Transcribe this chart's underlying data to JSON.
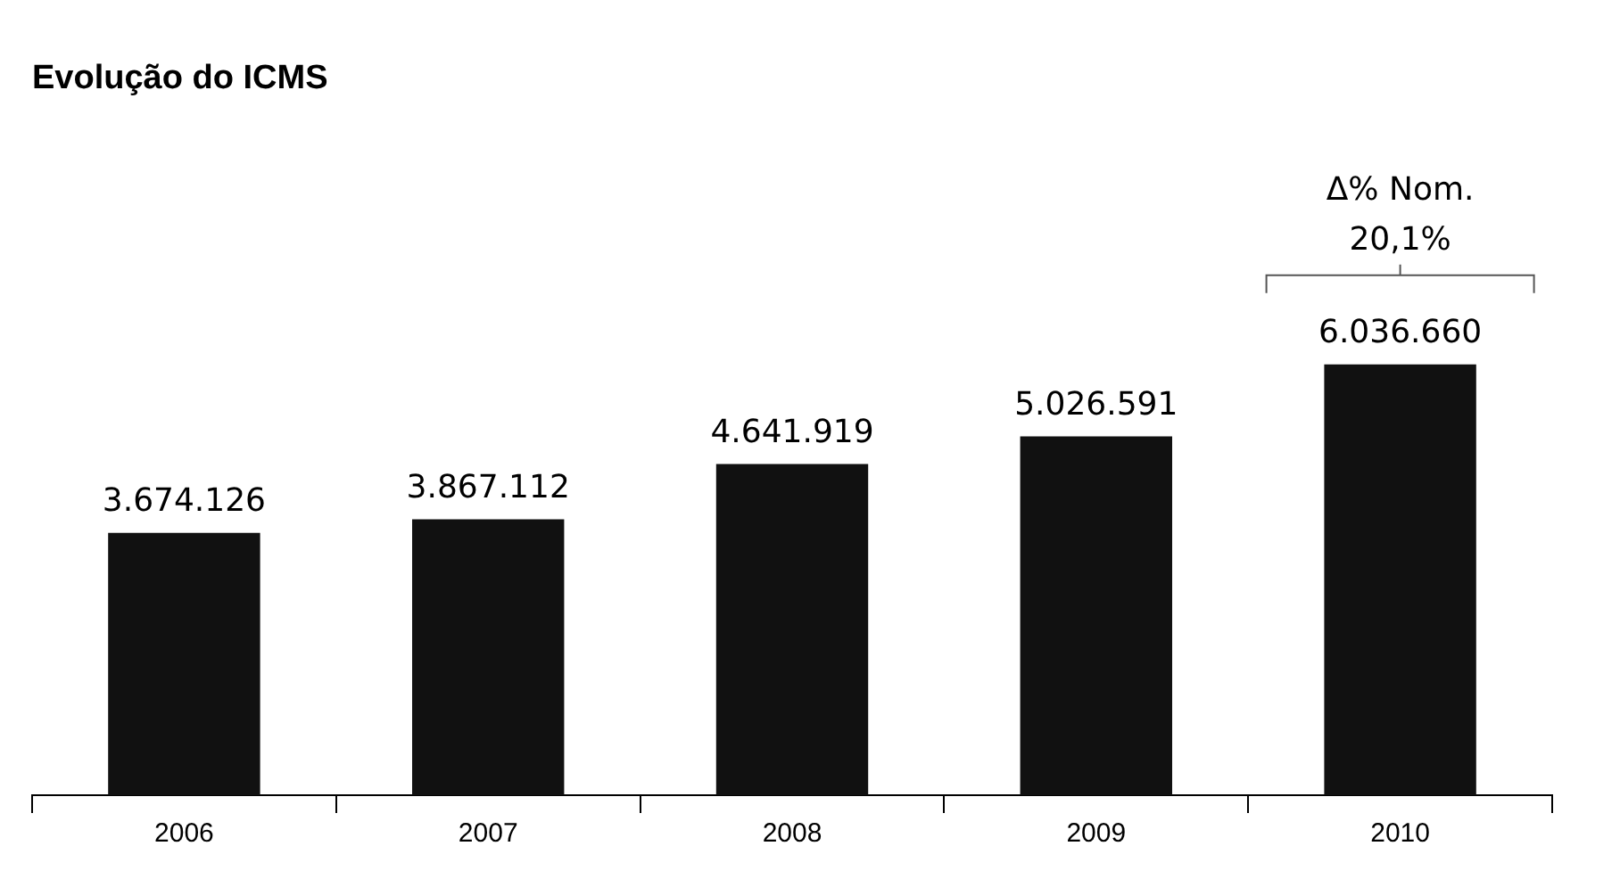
{
  "chart_data": {
    "type": "bar",
    "title": "Evolução do ICMS",
    "categories": [
      "2006",
      "2007",
      "2008",
      "2009",
      "2010"
    ],
    "values": [
      3674126,
      3867112,
      4641919,
      5026591,
      6036660
    ],
    "value_labels": [
      "3.674.126",
      "3.867.112",
      "4.641.919",
      "5.026.591",
      "6.036.660"
    ],
    "color": "#111111",
    "annotations": [
      {
        "text": "Δ% Nom.\n20,1%",
        "x": "2010"
      }
    ],
    "grid": false,
    "legend": false
  }
}
